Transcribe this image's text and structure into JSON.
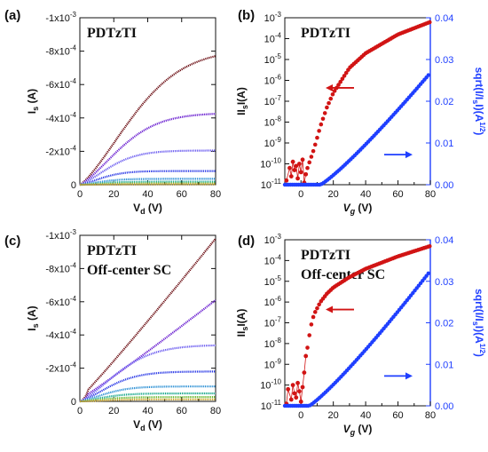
{
  "chart_data": [
    {
      "id": "a",
      "panel_label": "(a)",
      "type": "line",
      "inset_lines": [
        "PDTzTI"
      ],
      "xlabel": {
        "main": "V",
        "sub": "d",
        "tail": " (V)"
      },
      "ylabel": {
        "main": "I",
        "sub": "s",
        "tail": " (A)"
      },
      "xlim": [
        0,
        80
      ],
      "ylim": [
        0,
        -0.001
      ],
      "x_ticks": [
        "0",
        "20",
        "40",
        "60",
        "80"
      ],
      "y_ticks": [
        {
          "v": 0,
          "base": "0",
          "exp": ""
        },
        {
          "v": -0.0002,
          "base": "-2x10",
          "exp": "-4"
        },
        {
          "v": -0.0004,
          "base": "-4x10",
          "exp": "-4"
        },
        {
          "v": -0.0006,
          "base": "-6x10",
          "exp": "-4"
        },
        {
          "v": -0.0008,
          "base": "-8x10",
          "exp": "-4"
        },
        {
          "v": -0.001,
          "base": "-1x10",
          "exp": "-3"
        }
      ],
      "series": [
        {
          "color": "#6b0d12",
          "sat": -0.000815
        },
        {
          "color": "#6a1fd0",
          "sat": -0.00043
        },
        {
          "color": "#6b5cf0",
          "sat": -0.000205
        },
        {
          "color": "#2a39e6",
          "sat": -8.2e-05
        },
        {
          "color": "#2a8fd4",
          "sat": -3.5e-05
        },
        {
          "color": "#1aa88c",
          "sat": -1.8e-05
        },
        {
          "color": "#6ab82e",
          "sat": -8e-06
        },
        {
          "color": "#c9a227",
          "sat": -3e-06
        }
      ]
    },
    {
      "id": "b",
      "panel_label": "(b)",
      "type": "scatter",
      "inset_lines": [
        "PDTzTI"
      ],
      "xlabel": {
        "main": "V",
        "sub": "g",
        "tail": " (V)"
      },
      "ylabel_left": {
        "pre": "II",
        "sub": "s",
        "post": "I(A)"
      },
      "ylabel_right": {
        "pre": "sqrt(I/I",
        "sub": "s",
        "mid": "I)(A",
        "sup": "1/2",
        "post": ")"
      },
      "xlim": [
        -10,
        80
      ],
      "ylim_log": [
        -11,
        -3
      ],
      "ylim_right": [
        0,
        0.04
      ],
      "x_ticks": [
        "0",
        "20",
        "40",
        "60",
        "80"
      ],
      "left_ticks": [
        {
          "exp": "-3"
        },
        {
          "exp": "-4"
        },
        {
          "exp": "-5"
        },
        {
          "exp": "-6"
        },
        {
          "exp": "-7"
        },
        {
          "exp": "-8"
        },
        {
          "exp": "-9"
        },
        {
          "exp": "-10"
        },
        {
          "exp": "-11"
        }
      ],
      "right_ticks": [
        "0.00",
        "0.01",
        "0.02",
        "0.03",
        "0.04"
      ],
      "red_series": {
        "color": "#d11414",
        "scatter_points": [
          [
            -9,
            -10.8
          ],
          [
            -7,
            -10.2
          ],
          [
            -6,
            -10.6
          ],
          [
            -5,
            -9.9
          ],
          [
            -4,
            -10.3
          ],
          [
            -3,
            -10.1
          ],
          [
            -2,
            -10.7
          ],
          [
            -1,
            -10.0
          ],
          [
            0,
            -10.4
          ],
          [
            1,
            -9.8
          ],
          [
            2,
            -10.9
          ],
          [
            3,
            -10.5
          ]
        ],
        "upper_anchor": [
          [
            4,
            -10.2
          ],
          [
            8,
            -9.3
          ],
          [
            12,
            -8.2
          ],
          [
            16,
            -7.3
          ],
          [
            20,
            -6.6
          ],
          [
            30,
            -5.4
          ],
          [
            40,
            -4.7
          ],
          [
            60,
            -3.8
          ],
          [
            80,
            -3.2
          ]
        ]
      },
      "blue_series": {
        "color": "#1f3fff",
        "threshold": 12,
        "top": 0.0268
      }
    },
    {
      "id": "c",
      "panel_label": "(c)",
      "type": "line",
      "inset_lines": [
        "PDTzTI",
        "Off-center SC"
      ],
      "xlabel": {
        "main": "V",
        "sub": "d",
        "tail": " (V)"
      },
      "ylabel": {
        "main": "I",
        "sub": "s",
        "tail": " (A)"
      },
      "xlim": [
        0,
        80
      ],
      "ylim": [
        0,
        -0.001
      ],
      "x_ticks": [
        "0",
        "20",
        "40",
        "60",
        "80"
      ],
      "y_ticks": [
        {
          "v": 0,
          "base": "0",
          "exp": ""
        },
        {
          "v": -0.0002,
          "base": "-2x10",
          "exp": "-4"
        },
        {
          "v": -0.0004,
          "base": "-4x10",
          "exp": "-4"
        },
        {
          "v": -0.0006,
          "base": "-6x10",
          "exp": "-4"
        },
        {
          "v": -0.0008,
          "base": "-8x10",
          "exp": "-4"
        },
        {
          "v": -0.001,
          "base": "-1x10",
          "exp": "-3"
        }
      ],
      "series": [
        {
          "color": "#6b0d12",
          "sat": -0.00098,
          "linear": true
        },
        {
          "color": "#6a1fd0",
          "sat": -0.00061,
          "linear": true
        },
        {
          "color": "#6b5cf0",
          "sat": -0.00034
        },
        {
          "color": "#2a39e6",
          "sat": -0.00018
        },
        {
          "color": "#2a8fd4",
          "sat": -9e-05
        },
        {
          "color": "#1aa88c",
          "sat": -4.8e-05
        },
        {
          "color": "#6ab82e",
          "sat": -2.6e-05
        },
        {
          "color": "#c9a227",
          "sat": -1.2e-05
        }
      ]
    },
    {
      "id": "d",
      "panel_label": "(d)",
      "type": "scatter",
      "inset_lines": [
        "PDTzTI",
        "Off-center SC"
      ],
      "xlabel": {
        "main": "V",
        "sub": "g",
        "tail": " (V)"
      },
      "ylabel_left": {
        "pre": "II",
        "sub": "s",
        "post": "I(A)"
      },
      "ylabel_right": {
        "pre": "sqrt(I/I",
        "sub": "s",
        "mid": "I)(A",
        "sup": "1/2",
        "post": ")"
      },
      "xlim": [
        -10,
        80
      ],
      "ylim_log": [
        -11,
        -3
      ],
      "ylim_right": [
        0,
        0.04
      ],
      "x_ticks": [
        "0",
        "20",
        "40",
        "60",
        "80"
      ],
      "left_ticks": [
        {
          "exp": "-3"
        },
        {
          "exp": "-4"
        },
        {
          "exp": "-5"
        },
        {
          "exp": "-6"
        },
        {
          "exp": "-7"
        },
        {
          "exp": "-8"
        },
        {
          "exp": "-9"
        },
        {
          "exp": "-10"
        },
        {
          "exp": "-11"
        }
      ],
      "right_ticks": [
        "0.00",
        "0.01",
        "0.02",
        "0.03",
        "0.04"
      ],
      "red_series": {
        "color": "#d11414",
        "scatter_points": [
          [
            -9,
            -10.9
          ],
          [
            -8,
            -10.2
          ],
          [
            -6,
            -10.7
          ],
          [
            -5,
            -10.0
          ],
          [
            -4,
            -10.4
          ],
          [
            -3,
            -10.6
          ],
          [
            -2,
            -9.9
          ],
          [
            -1,
            -10.3
          ],
          [
            0,
            -10.8
          ],
          [
            1,
            -10.1
          ],
          [
            2,
            -9.4
          ],
          [
            3,
            -8.6
          ]
        ],
        "upper_anchor": [
          [
            4,
            -8.2
          ],
          [
            6,
            -7.2
          ],
          [
            8,
            -6.6
          ],
          [
            12,
            -6.0
          ],
          [
            16,
            -5.6
          ],
          [
            20,
            -5.3
          ],
          [
            30,
            -4.8
          ],
          [
            40,
            -4.4
          ],
          [
            60,
            -3.8
          ],
          [
            80,
            -3.3
          ]
        ]
      },
      "blue_series": {
        "color": "#1f3fff",
        "threshold": 5,
        "top": 0.0325
      }
    }
  ]
}
